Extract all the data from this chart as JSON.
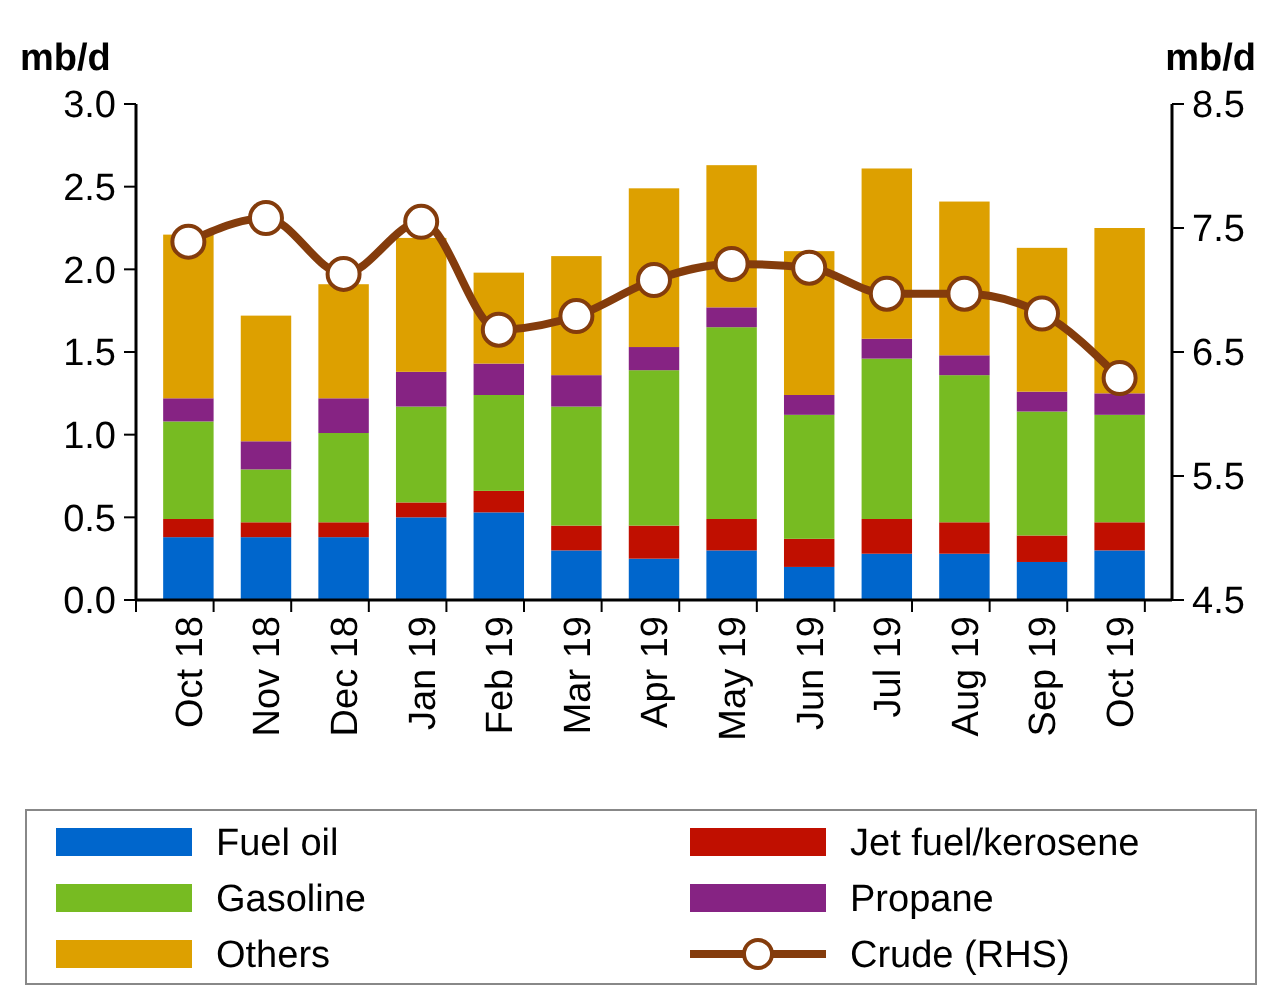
{
  "chart_data": {
    "type": "bar",
    "stacked": true,
    "ylabel": "mb/d",
    "y2label": "mb/d",
    "categories": [
      "Oct 18",
      "Nov 18",
      "Dec 18",
      "Jan 19",
      "Feb 19",
      "Mar 19",
      "Apr 19",
      "May 19",
      "Jun 19",
      "Jul 19",
      "Aug 19",
      "Sep 19",
      "Oct 19"
    ],
    "series": [
      {
        "name": "Fuel oil",
        "color": "#0066cc",
        "values": [
          0.38,
          0.38,
          0.38,
          0.5,
          0.53,
          0.3,
          0.25,
          0.3,
          0.2,
          0.28,
          0.28,
          0.23,
          0.3
        ]
      },
      {
        "name": "Jet fuel/kerosene",
        "color": "#c00f00",
        "values": [
          0.11,
          0.09,
          0.09,
          0.09,
          0.13,
          0.15,
          0.2,
          0.19,
          0.17,
          0.21,
          0.19,
          0.16,
          0.17
        ]
      },
      {
        "name": "Gasoline",
        "color": "#77bb22",
        "values": [
          0.59,
          0.32,
          0.54,
          0.58,
          0.58,
          0.72,
          0.94,
          1.16,
          0.75,
          0.97,
          0.89,
          0.75,
          0.65
        ]
      },
      {
        "name": "Propane",
        "color": "#862383",
        "values": [
          0.14,
          0.17,
          0.21,
          0.21,
          0.19,
          0.19,
          0.14,
          0.12,
          0.12,
          0.12,
          0.12,
          0.12,
          0.13
        ]
      },
      {
        "name": "Others",
        "color": "#dda000",
        "values": [
          0.99,
          0.76,
          0.69,
          0.81,
          0.55,
          0.72,
          0.96,
          0.86,
          0.87,
          1.03,
          0.93,
          0.87,
          1.0
        ]
      },
      {
        "name": "Crude (RHS)",
        "type": "line",
        "axis": "y2",
        "color": "#843c0c",
        "marker": "circle",
        "values": [
          7.39,
          7.58,
          7.13,
          7.55,
          6.68,
          6.79,
          7.08,
          7.21,
          7.18,
          6.97,
          6.97,
          6.81,
          6.29
        ]
      }
    ],
    "ylim": [
      0,
      3
    ],
    "yticks": [
      {
        "value": 0,
        "label": "0.0"
      },
      {
        "value": 0.5,
        "label": "0.5"
      },
      {
        "value": 1,
        "label": "1.0"
      },
      {
        "value": 1.5,
        "label": "1.5"
      },
      {
        "value": 2,
        "label": "2.0"
      },
      {
        "value": 2.5,
        "label": "2.5"
      },
      {
        "value": 3,
        "label": "3.0"
      }
    ],
    "y2lim": [
      4.5,
      8.5
    ],
    "y2ticks": [
      4.5,
      5.5,
      6.5,
      7.5,
      8.5
    ],
    "grid": false,
    "legend": "bottom"
  }
}
